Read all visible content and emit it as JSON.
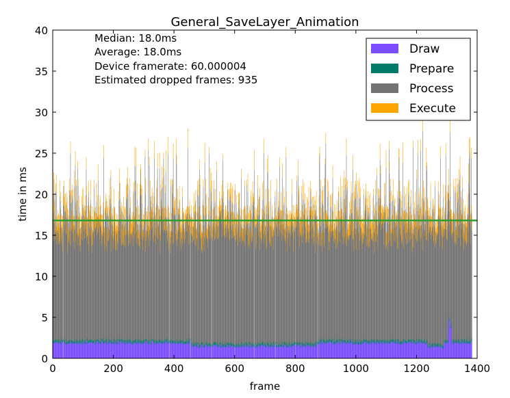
{
  "chart_data": {
    "type": "bar",
    "stacked": true,
    "title": "General_SaveLayer_Animation",
    "xlabel": "frame",
    "ylabel": "time in ms",
    "xlim": [
      0,
      1400
    ],
    "ylim": [
      0,
      40
    ],
    "xticks": [
      0,
      200,
      400,
      600,
      800,
      1000,
      1200,
      1400
    ],
    "yticks": [
      0,
      5,
      10,
      15,
      20,
      25,
      30,
      35,
      40
    ],
    "frame_count": 1383,
    "threshold_line": {
      "value": 16.8,
      "color": "#2ca02c"
    },
    "stats": [
      "Median: 18.0ms",
      "Average: 18.0ms",
      "Device framerate: 60.000004",
      "Estimated dropped frames: 935"
    ],
    "legend_position": "top-right",
    "series": [
      {
        "name": "Draw",
        "color": "#7b4dff",
        "typical_value": 1.9
      },
      {
        "name": "Prepare",
        "color": "#007a66",
        "typical_value": 0.2
      },
      {
        "name": "Process",
        "color": "#737373",
        "typical_value": 14.3
      },
      {
        "name": "Execute",
        "color": "#ffa500",
        "typical_value": 1.6
      }
    ],
    "gap_frames": [
      35,
      385,
      455,
      525,
      600,
      665,
      735,
      800,
      875
    ],
    "spike_frames": [
      {
        "frame": 315,
        "total": 26.8
      },
      {
        "frame": 380,
        "total": 27.0
      },
      {
        "frame": 445,
        "total": 28.0
      },
      {
        "frame": 900,
        "total": 27.5
      },
      {
        "frame": 1220,
        "total": 29.5
      },
      {
        "frame": 1310,
        "total": 29.0
      }
    ]
  }
}
